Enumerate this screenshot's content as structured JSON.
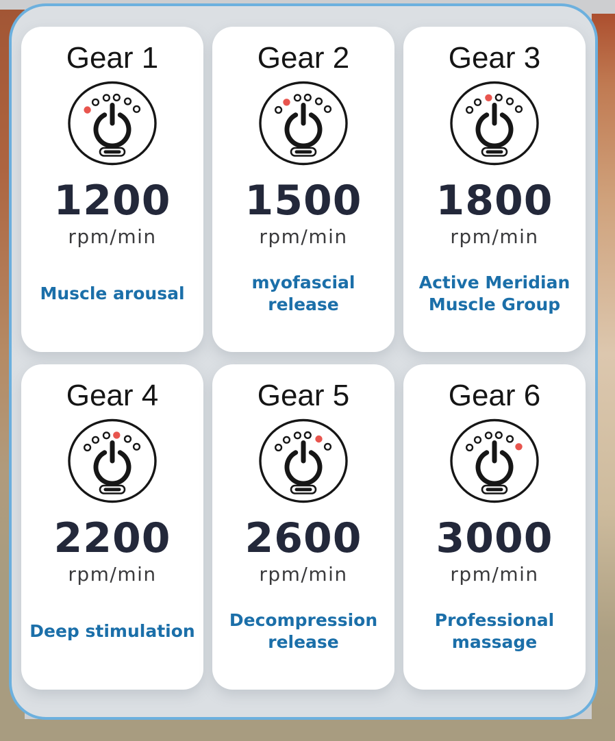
{
  "colors": {
    "panel_border_blue": "#6cb0de",
    "panel_background": "#dbdfe3",
    "card_background": "#ffffff",
    "title_black": "#151515",
    "rpm_navy": "#23283a",
    "unit_gray": "#3a3a3c",
    "description_blue": "#1b6fa9",
    "active_dot_red": "#e8554e"
  },
  "dial": {
    "total_levels": 6,
    "icon_name": "power-dial-icon"
  },
  "gears": [
    {
      "title": "Gear 1",
      "rpm": "1200",
      "unit": "rpm/min",
      "description": "Muscle arousal",
      "active_dot": 1
    },
    {
      "title": "Gear 2",
      "rpm": "1500",
      "unit": "rpm/min",
      "description": "myofascial release",
      "active_dot": 2
    },
    {
      "title": "Gear 3",
      "rpm": "1800",
      "unit": "rpm/min",
      "description": "Active Meridian Muscle Group",
      "active_dot": 3
    },
    {
      "title": "Gear 4",
      "rpm": "2200",
      "unit": "rpm/min",
      "description": "Deep stimulation",
      "active_dot": 4
    },
    {
      "title": "Gear 5",
      "rpm": "2600",
      "unit": "rpm/min",
      "description": "Decompression release",
      "active_dot": 5
    },
    {
      "title": "Gear 6",
      "rpm": "3000",
      "unit": "rpm/min",
      "description": "Professional massage",
      "active_dot": 6
    }
  ]
}
